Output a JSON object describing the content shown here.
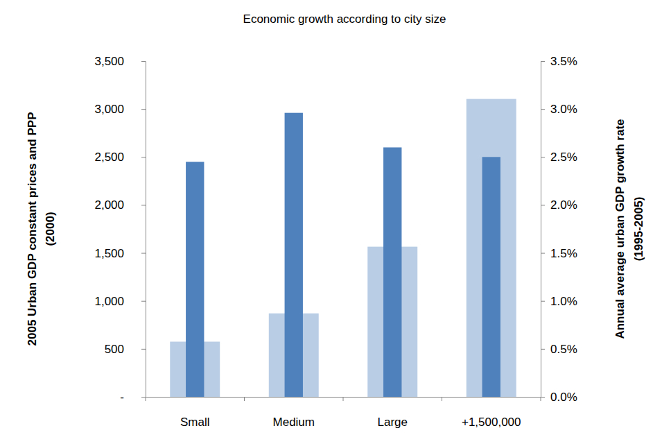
{
  "chart_data": {
    "type": "bar",
    "title": "Economic growth according to city size",
    "categories": [
      "Small",
      "Medium",
      "Large",
      "+1,500,000"
    ],
    "series": [
      {
        "color": "#b9cde5",
        "values": [
          575,
          870,
          1565,
          3105
        ]
      },
      {
        "color": "#4f81bd",
        "values": [
          2.45,
          2.96,
          2.6,
          2.5
        ],
        "axis": "y2"
      }
    ],
    "y_label": [
      "2005  Urban GDP constant prices and PPP",
      "(2000)"
    ],
    "y2_label": [
      "Annual average urban GDP growth rate",
      "(1995-2005)"
    ],
    "ylim": [
      0,
      3500
    ],
    "yticks": [
      {
        "value": 0,
        "label": "-"
      },
      500,
      {
        "value": 1000,
        "label": "1,000"
      },
      {
        "value": 1500,
        "label": "1,500"
      },
      {
        "value": 2000,
        "label": "2,000"
      },
      {
        "value": 2500,
        "label": "2,500"
      },
      {
        "value": 3000,
        "label": "3,000"
      },
      {
        "value": 3500,
        "label": "3,500"
      }
    ],
    "y2lim": [
      0,
      3.5
    ],
    "y2ticks": [
      {
        "value": 0,
        "label": "0.0%"
      },
      {
        "value": 0.5,
        "label": "0.5%"
      },
      {
        "value": 1,
        "label": "1.0%"
      },
      {
        "value": 1.5,
        "label": "1.5%"
      },
      {
        "value": 2,
        "label": "2.0%"
      },
      {
        "value": 2.5,
        "label": "2.5%"
      },
      {
        "value": 3,
        "label": "3.0%"
      },
      {
        "value": 3.5,
        "label": "3.5%"
      }
    ],
    "grid": false
  }
}
